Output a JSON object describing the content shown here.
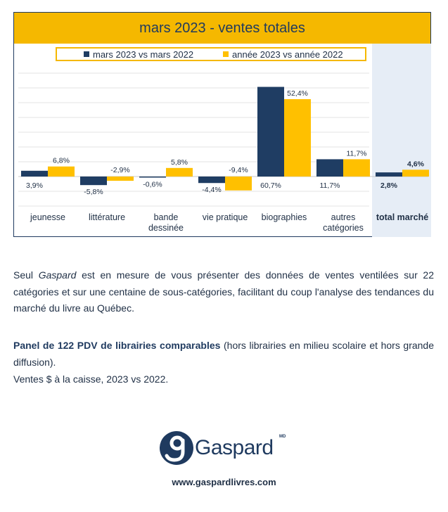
{
  "chart_data": {
    "type": "bar",
    "title": "mars 2023 - ventes totales",
    "categories": [
      "jeunesse",
      "littérature",
      "bande dessinée",
      "vie pratique",
      "biographies",
      "autres catégories",
      "total marché"
    ],
    "category_lines": [
      [
        "jeunesse"
      ],
      [
        "littérature"
      ],
      [
        "bande",
        "dessinée"
      ],
      [
        "vie pratique"
      ],
      [
        "biographies"
      ],
      [
        "autres",
        "catégories"
      ],
      [
        "total marché"
      ]
    ],
    "series": [
      {
        "name": "mars 2023 vs mars 2022",
        "color": "#1f3d63",
        "values": [
          3.9,
          -5.8,
          -0.6,
          -4.4,
          60.7,
          11.7,
          2.8
        ],
        "labels": [
          "3,9%",
          "-5,8%",
          "-0,6%",
          "-4,4%",
          "60,7%",
          "11,7%",
          "2,8%"
        ]
      },
      {
        "name": "année 2023 vs année 2022",
        "color": "#ffc000",
        "values": [
          6.8,
          -2.9,
          5.8,
          -9.4,
          52.4,
          11.7,
          4.6
        ],
        "labels": [
          "6,8%",
          "-2,9%",
          "5,8%",
          "-9,4%",
          "52,4%",
          "11,7%",
          "4,6%"
        ]
      }
    ],
    "ylim": [
      -20,
      70
    ],
    "grid": true,
    "legend_position": "top",
    "highlight_category": "total marché"
  },
  "text": {
    "p1_prefix": "Seul ",
    "p1_brand": "Gaspard",
    "p1_rest": " est en mesure de vous présenter des données de ventes ventilées sur 22 catégories et sur une centaine de sous-catégories, facilitant du coup l'analyse des tendances du marché du livre au Québec.",
    "p2_bold": "Panel de 122 PDV de librairies comparables",
    "p2_rest": " (hors librairies en milieu scolaire et hors grande diffusion).",
    "p3": "Ventes $ à la caisse, 2023 vs 2022."
  },
  "footer": {
    "logo_text": "Gaspard",
    "logo_tm": "MD",
    "url": "www.gaspardlivres.com"
  },
  "colors": {
    "accent": "#f5b800",
    "navy": "#1f3d63",
    "panel": "#e6edf6"
  }
}
